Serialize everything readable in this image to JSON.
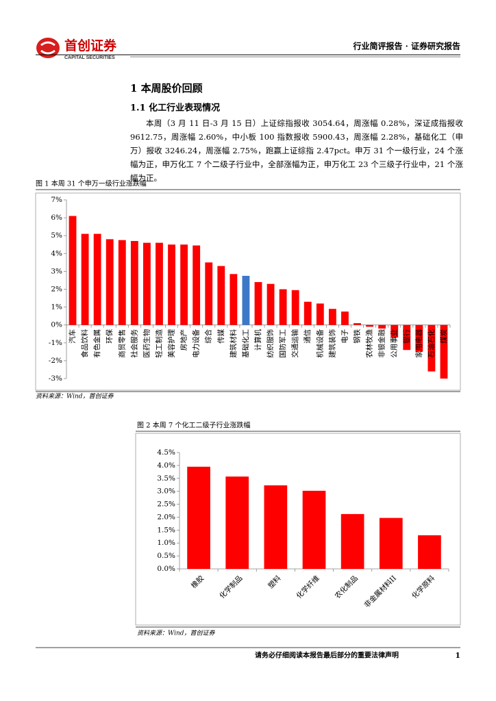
{
  "header": {
    "logo": "首创证券",
    "logo_en": "CAPITAL SECURITIES",
    "report_type": "行业简评报告 · 证券研究报告"
  },
  "section": {
    "heading": "1 本周股价回顾",
    "subheading": "1.1 化工行业表现情况",
    "paragraph": "本周（3 月 11 日-3 月 15 日）上证综指报收 3054.64，周涨幅 0.28%，深证成指报收 9612.75，周涨幅 2.60%，中小板 100 指数报收 5900.43，周涨幅 2.28%，基础化工（申万）报收 3246.24，周涨幅 2.75%，跑赢上证综指 2.47pct。申万 31 个一级行业，24 个涨幅为正，申万化工 7 个二级子行业中，全部涨幅为正，申万化工 23 个三级子行业中，21 个涨幅为正。"
  },
  "chart_data": [
    {
      "type": "bar",
      "title": "图 1  本周 31 个申万一级行业涨跌幅",
      "source": "资料来源：Wind，首创证券",
      "categories": [
        "汽车",
        "食品饮料",
        "有色金属",
        "环保",
        "商贸零售",
        "社会服务",
        "医药生物",
        "轻工制造",
        "美容护理",
        "房地产",
        "电力设备",
        "综合",
        "传媒",
        "建筑材料",
        "基础化工",
        "计算机",
        "纺织服饰",
        "国防军工",
        "交通运输",
        "通信",
        "机械设备",
        "建筑装饰",
        "电子",
        "钢铁",
        "农林牧渔",
        "非银金融",
        "公用事业",
        "银行",
        "家用电器",
        "石油石化",
        "煤炭"
      ],
      "values": [
        6.1,
        5.1,
        5.1,
        4.8,
        4.75,
        4.7,
        4.6,
        4.6,
        4.5,
        4.5,
        4.45,
        3.5,
        3.3,
        2.85,
        2.75,
        2.4,
        2.3,
        2.0,
        1.95,
        1.3,
        1.2,
        0.9,
        0.75,
        0.1,
        -0.1,
        -0.2,
        -0.7,
        -1.4,
        -1.5,
        -2.6,
        -3.0
      ],
      "colors": [
        "#ff0000",
        "#ff0000",
        "#ff0000",
        "#ff0000",
        "#ff0000",
        "#ff0000",
        "#ff0000",
        "#ff0000",
        "#ff0000",
        "#ff0000",
        "#ff0000",
        "#ff0000",
        "#ff0000",
        "#ff0000",
        "#3c78c8",
        "#ff0000",
        "#ff0000",
        "#ff0000",
        "#ff0000",
        "#ff0000",
        "#ff0000",
        "#ff0000",
        "#ff0000",
        "#ff0000",
        "#ff0000",
        "#ff0000",
        "#ff0000",
        "#ff0000",
        "#ff0000",
        "#ff0000",
        "#ff0000"
      ],
      "ylim": [
        -3,
        7
      ],
      "yticks": [
        {
          "value": -3,
          "label": "-3%"
        },
        {
          "value": -2,
          "label": "-2%"
        },
        {
          "value": -1,
          "label": "-1%"
        },
        {
          "value": 0,
          "label": "0%"
        },
        {
          "value": 1,
          "label": "1%"
        },
        {
          "value": 2,
          "label": "2%"
        },
        {
          "value": 3,
          "label": "3%"
        },
        {
          "value": 4,
          "label": "4%"
        },
        {
          "value": 5,
          "label": "5%"
        },
        {
          "value": 6,
          "label": "6%"
        },
        {
          "value": 7,
          "label": "7%"
        }
      ],
      "grid": false
    },
    {
      "type": "bar",
      "title": "图 2  本周 7 个化工二级子行业涨跌幅",
      "source": "资料来源：Wind，首创证券",
      "categories": [
        "橡胶",
        "化学制品",
        "塑料",
        "化学纤维",
        "农化制品",
        "非金属材料II",
        "化学原料"
      ],
      "values": [
        3.95,
        3.57,
        3.23,
        3.02,
        2.12,
        1.97,
        1.3
      ],
      "color": "#ff0000",
      "ylim": [
        0,
        4.5
      ],
      "yticks": [
        {
          "value": 0,
          "label": "0.0%"
        },
        {
          "value": 0.5,
          "label": "0.5%"
        },
        {
          "value": 1,
          "label": "1.0%"
        },
        {
          "value": 1.5,
          "label": "1.5%"
        },
        {
          "value": 2,
          "label": "2.0%"
        },
        {
          "value": 2.5,
          "label": "2.5%"
        },
        {
          "value": 3,
          "label": "3.0%"
        },
        {
          "value": 3.5,
          "label": "3.5%"
        },
        {
          "value": 4,
          "label": "4.0%"
        },
        {
          "value": 4.5,
          "label": "4.5%"
        }
      ],
      "grid": false
    }
  ],
  "footer": {
    "disclaimer": "请务必仔细阅读本报告最后部分的重要法律声明",
    "page": "1"
  }
}
